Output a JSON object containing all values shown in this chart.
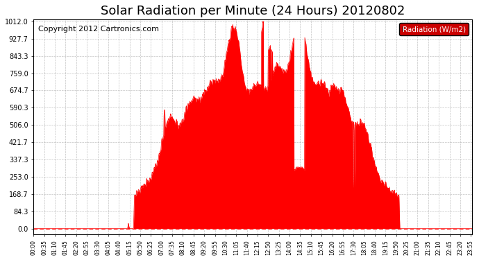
{
  "title": "Solar Radiation per Minute (24 Hours) 20120802",
  "copyright": "Copyright 2012 Cartronics.com",
  "ylabel": "Radiation (W/m2)",
  "y_tick_values": [
    0.0,
    84.3,
    168.7,
    253.0,
    337.3,
    421.7,
    506.0,
    590.3,
    674.7,
    759.0,
    843.3,
    927.7,
    1012.0
  ],
  "ymax": 1012.0,
  "ymin": 0.0,
  "fill_color": "#FF0000",
  "line_color": "#FF0000",
  "background_color": "#FFFFFF",
  "grid_color": "#AAAAAA",
  "title_fontsize": 13,
  "copyright_fontsize": 8,
  "legend_facecolor": "#CC0000",
  "legend_text_color": "#FFFFFF",
  "x_tick_interval_minutes": 35,
  "total_minutes": 1440
}
